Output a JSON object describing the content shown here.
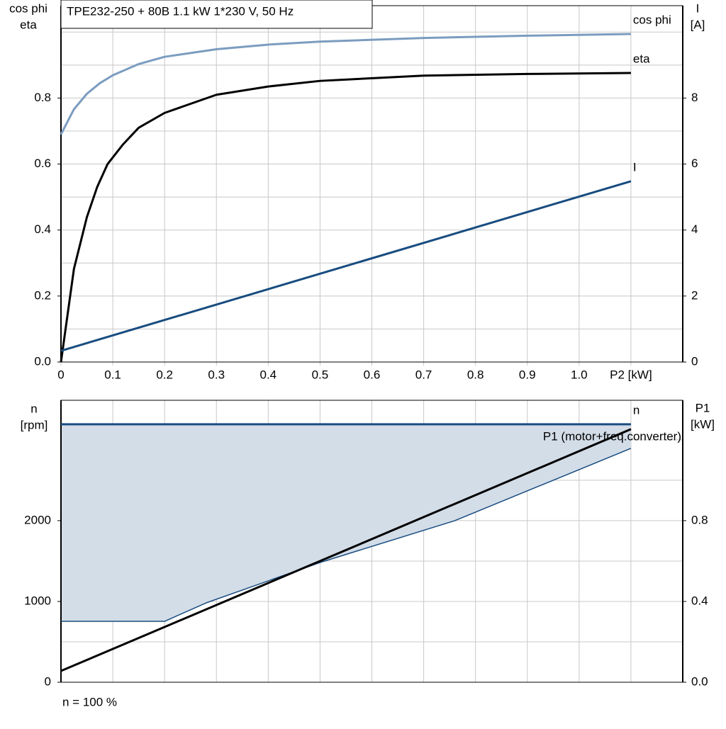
{
  "chart_data": [
    {
      "type": "line",
      "title": "TPE232-250 + 80B   1.1 kW   1*230 V, 50 Hz",
      "ylabel": [
        "cos phi",
        "eta"
      ],
      "y2label": [
        "I",
        "[A]"
      ],
      "xlim": [
        0,
        1.2
      ],
      "ylim": [
        0,
        1.08
      ],
      "y2lim": [
        0,
        10.8
      ],
      "xticks": [
        0,
        0.1,
        0.2,
        0.3,
        0.4,
        0.5,
        0.6,
        0.7,
        0.8,
        0.9,
        {
          "value": 1,
          "label": "1.0"
        },
        {
          "value": 1.1,
          "label": "P2 [kW]"
        }
      ],
      "yticks": [
        {
          "value": 0,
          "label": "0.0"
        },
        0.2,
        0.4,
        0.6,
        0.8
      ],
      "ygrid": [
        0.1,
        0.2,
        0.3,
        0.4,
        0.5,
        0.6,
        0.7,
        0.8,
        0.9,
        1.0
      ],
      "y2ticks": [
        0,
        2,
        4,
        6,
        8
      ],
      "series": [
        {
          "name": "cos phi",
          "color": "#7b9cc0",
          "x": [
            0,
            0.025,
            0.05,
            0.075,
            0.1,
            0.15,
            0.2,
            0.3,
            0.4,
            0.5,
            0.7,
            0.9,
            1.1
          ],
          "values": [
            0.69,
            0.766,
            0.813,
            0.845,
            0.869,
            0.903,
            0.925,
            0.948,
            0.962,
            0.971,
            0.982,
            0.989,
            0.994
          ]
        },
        {
          "name": "eta",
          "color": "#000000",
          "x": [
            0,
            0.025,
            0.05,
            0.07,
            0.09,
            0.12,
            0.15,
            0.2,
            0.3,
            0.4,
            0.5,
            0.7,
            0.9,
            1.1
          ],
          "values": [
            0,
            0.282,
            0.439,
            0.531,
            0.6,
            0.66,
            0.71,
            0.755,
            0.81,
            0.835,
            0.852,
            0.868,
            0.873,
            0.876
          ]
        },
        {
          "name": "I",
          "color": "#184c80",
          "axis": "y2",
          "x": [
            0,
            1.1
          ],
          "values": [
            0.34,
            5.48
          ]
        }
      ]
    },
    {
      "type": "line",
      "ylabel": [
        "n",
        "[rpm]"
      ],
      "y2label": [
        "P1",
        "[kW]"
      ],
      "note": "n = 100 %",
      "xlim": [
        0,
        1.2
      ],
      "ylim": [
        0,
        3490
      ],
      "y2lim": [
        0,
        1.396
      ],
      "xgrid": [
        0.1,
        0.2,
        0.3,
        0.4,
        0.5,
        0.6,
        0.7,
        0.8,
        0.9,
        1.0,
        1.1
      ],
      "yticks": [
        0,
        1000,
        2000
      ],
      "ygrid": [
        500,
        1000,
        1500,
        2000,
        2500,
        3000
      ],
      "y2ticks": [
        {
          "value": 0,
          "label": "0.0"
        },
        0.4,
        0.8
      ],
      "fill_color": "#d3dde8",
      "series": [
        {
          "name": "n",
          "color": "#184c80",
          "x": [
            0,
            1.1
          ],
          "values": [
            3193,
            3193
          ]
        },
        {
          "color": "#184c80",
          "x": [
            0,
            0.2,
            0.28,
            0.5,
            0.76,
            1.1
          ],
          "values": [
            754,
            754,
            982,
            1482,
            2000,
            2895
          ]
        },
        {
          "name": "P1 (motor+freq.converter)",
          "color": "#000000",
          "axis": "y2",
          "x": [
            0,
            1.1
          ],
          "values": [
            0.056,
            1.253
          ]
        }
      ]
    }
  ]
}
